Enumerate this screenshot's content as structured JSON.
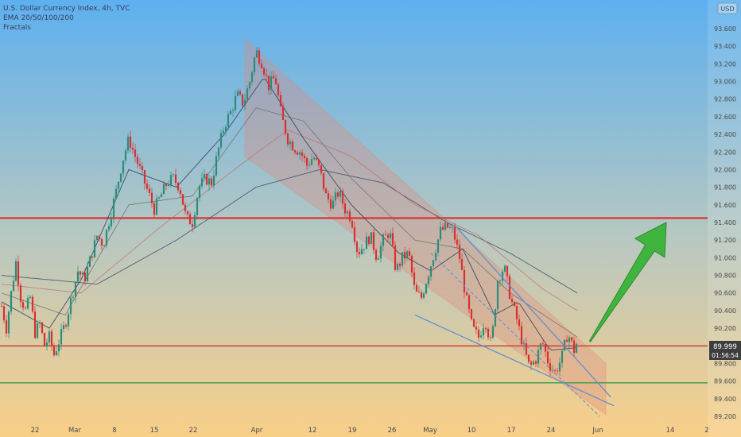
{
  "legend": {
    "line1": "U.S. Dollar Currency Index, 4h, TVC",
    "line2": "EMA 20/50/100/200",
    "line3": "Fractals"
  },
  "currency": "USD",
  "price_label": "89.999",
  "countdown": "01:56:54",
  "colors": {
    "bg_top": "#5fb0ee",
    "bg_bottom": "#f8cf8a",
    "up": "#2e8b7a",
    "down": "#d83030",
    "resistance": "#d93a3a",
    "support": "#3a9a4a",
    "channel": "#e08a7a",
    "arrow": "#3fb53f",
    "wedge": "#5b8fd6"
  },
  "chart_data": {
    "type": "candlestick",
    "title": "U.S. Dollar Currency Index, 4h, TVC",
    "ylim": [
      89.2,
      93.6
    ],
    "y_ticks": [
      "89.200",
      "89.400",
      "89.600",
      "89.800",
      "90.000",
      "90.200",
      "90.400",
      "90.600",
      "90.800",
      "91.000",
      "91.200",
      "91.400",
      "91.600",
      "91.800",
      "92.000",
      "92.200",
      "92.400",
      "92.600",
      "92.800",
      "93.000",
      "93.200",
      "93.400",
      "93.600"
    ],
    "x_ticks": [
      "22",
      "Mar",
      "8",
      "15",
      "22",
      "Apr",
      "12",
      "19",
      "26",
      "May",
      "10",
      "17",
      "24",
      "Jun",
      "14",
      "2"
    ],
    "close_path": [
      {
        "t": 0,
        "v": 90.45
      },
      {
        "t": 3,
        "v": 90.2
      },
      {
        "t": 6,
        "v": 90.6
      },
      {
        "t": 9,
        "v": 90.95
      },
      {
        "t": 12,
        "v": 90.55
      },
      {
        "t": 15,
        "v": 90.4
      },
      {
        "t": 18,
        "v": 90.55
      },
      {
        "t": 21,
        "v": 90.15
      },
      {
        "t": 24,
        "v": 90.25
      },
      {
        "t": 27,
        "v": 90.0
      },
      {
        "t": 30,
        "v": 90.1
      },
      {
        "t": 33,
        "v": 89.9
      },
      {
        "t": 36,
        "v": 90.05
      },
      {
        "t": 40,
        "v": 90.25
      },
      {
        "t": 44,
        "v": 90.55
      },
      {
        "t": 48,
        "v": 90.85
      },
      {
        "t": 52,
        "v": 90.75
      },
      {
        "t": 56,
        "v": 91.0
      },
      {
        "t": 60,
        "v": 91.25
      },
      {
        "t": 64,
        "v": 91.15
      },
      {
        "t": 68,
        "v": 91.45
      },
      {
        "t": 72,
        "v": 91.75
      },
      {
        "t": 76,
        "v": 92.1
      },
      {
        "t": 80,
        "v": 92.35
      },
      {
        "t": 84,
        "v": 92.15
      },
      {
        "t": 88,
        "v": 91.95
      },
      {
        "t": 92,
        "v": 91.75
      },
      {
        "t": 96,
        "v": 91.55
      },
      {
        "t": 100,
        "v": 91.7
      },
      {
        "t": 104,
        "v": 91.85
      },
      {
        "t": 108,
        "v": 91.9
      },
      {
        "t": 112,
        "v": 91.8
      },
      {
        "t": 116,
        "v": 91.45
      },
      {
        "t": 120,
        "v": 91.4
      },
      {
        "t": 124,
        "v": 91.8
      },
      {
        "t": 128,
        "v": 91.9
      },
      {
        "t": 132,
        "v": 91.85
      },
      {
        "t": 136,
        "v": 92.2
      },
      {
        "t": 140,
        "v": 92.5
      },
      {
        "t": 144,
        "v": 92.65
      },
      {
        "t": 148,
        "v": 92.85
      },
      {
        "t": 152,
        "v": 92.75
      },
      {
        "t": 156,
        "v": 93.0
      },
      {
        "t": 160,
        "v": 93.35
      },
      {
        "t": 164,
        "v": 93.2
      },
      {
        "t": 168,
        "v": 92.95
      },
      {
        "t": 172,
        "v": 93.05
      },
      {
        "t": 176,
        "v": 92.6
      },
      {
        "t": 180,
        "v": 92.35
      },
      {
        "t": 184,
        "v": 92.25
      },
      {
        "t": 188,
        "v": 92.2
      },
      {
        "t": 192,
        "v": 92.05
      },
      {
        "t": 196,
        "v": 92.15
      },
      {
        "t": 200,
        "v": 92.0
      },
      {
        "t": 204,
        "v": 91.7
      },
      {
        "t": 208,
        "v": 91.6
      },
      {
        "t": 212,
        "v": 91.75
      },
      {
        "t": 216,
        "v": 91.55
      },
      {
        "t": 220,
        "v": 91.45
      },
      {
        "t": 224,
        "v": 91.05
      },
      {
        "t": 228,
        "v": 91.15
      },
      {
        "t": 232,
        "v": 91.25
      },
      {
        "t": 236,
        "v": 91.0
      },
      {
        "t": 240,
        "v": 91.2
      },
      {
        "t": 244,
        "v": 91.3
      },
      {
        "t": 248,
        "v": 90.85
      },
      {
        "t": 252,
        "v": 91.0
      },
      {
        "t": 256,
        "v": 91.05
      },
      {
        "t": 260,
        "v": 90.6
      },
      {
        "t": 264,
        "v": 90.55
      },
      {
        "t": 268,
        "v": 90.8
      },
      {
        "t": 272,
        "v": 91.05
      },
      {
        "t": 276,
        "v": 91.3
      },
      {
        "t": 280,
        "v": 91.35
      },
      {
        "t": 284,
        "v": 91.3
      },
      {
        "t": 288,
        "v": 91.0
      },
      {
        "t": 292,
        "v": 90.55
      },
      {
        "t": 296,
        "v": 90.2
      },
      {
        "t": 300,
        "v": 90.1
      },
      {
        "t": 304,
        "v": 90.3
      },
      {
        "t": 308,
        "v": 90.0
      },
      {
        "t": 312,
        "v": 90.75
      },
      {
        "t": 316,
        "v": 90.9
      },
      {
        "t": 320,
        "v": 90.55
      },
      {
        "t": 324,
        "v": 90.3
      },
      {
        "t": 328,
        "v": 90.0
      },
      {
        "t": 332,
        "v": 89.75
      },
      {
        "t": 336,
        "v": 89.85
      },
      {
        "t": 340,
        "v": 90.05
      },
      {
        "t": 344,
        "v": 89.8
      },
      {
        "t": 348,
        "v": 89.7
      },
      {
        "t": 352,
        "v": 89.85
      },
      {
        "t": 356,
        "v": 90.15
      },
      {
        "t": 360,
        "v": 89.95
      },
      {
        "t": 362,
        "v": 90.05
      }
    ],
    "ema_fast": [
      {
        "t": 0,
        "v": 90.5
      },
      {
        "t": 30,
        "v": 90.2
      },
      {
        "t": 50,
        "v": 90.75
      },
      {
        "t": 80,
        "v": 92.0
      },
      {
        "t": 110,
        "v": 91.8
      },
      {
        "t": 140,
        "v": 92.4
      },
      {
        "t": 165,
        "v": 93.05
      },
      {
        "t": 190,
        "v": 92.35
      },
      {
        "t": 220,
        "v": 91.6
      },
      {
        "t": 250,
        "v": 91.05
      },
      {
        "t": 270,
        "v": 90.85
      },
      {
        "t": 290,
        "v": 91.1
      },
      {
        "t": 310,
        "v": 90.35
      },
      {
        "t": 325,
        "v": 90.5
      },
      {
        "t": 345,
        "v": 89.95
      },
      {
        "t": 362,
        "v": 89.98
      }
    ],
    "ema_mid": [
      {
        "t": 0,
        "v": 90.6
      },
      {
        "t": 40,
        "v": 90.35
      },
      {
        "t": 80,
        "v": 91.6
      },
      {
        "t": 120,
        "v": 91.7
      },
      {
        "t": 160,
        "v": 92.7
      },
      {
        "t": 190,
        "v": 92.55
      },
      {
        "t": 220,
        "v": 91.9
      },
      {
        "t": 260,
        "v": 91.2
      },
      {
        "t": 290,
        "v": 91.1
      },
      {
        "t": 320,
        "v": 90.6
      },
      {
        "t": 362,
        "v": 90.1
      }
    ],
    "ema_slow1": [
      {
        "t": 0,
        "v": 90.7
      },
      {
        "t": 50,
        "v": 90.6
      },
      {
        "t": 100,
        "v": 91.35
      },
      {
        "t": 150,
        "v": 92.05
      },
      {
        "t": 180,
        "v": 92.45
      },
      {
        "t": 220,
        "v": 92.15
      },
      {
        "t": 260,
        "v": 91.6
      },
      {
        "t": 300,
        "v": 91.25
      },
      {
        "t": 340,
        "v": 90.65
      },
      {
        "t": 362,
        "v": 90.4
      }
    ],
    "ema_slow2": [
      {
        "t": 0,
        "v": 90.8
      },
      {
        "t": 60,
        "v": 90.7
      },
      {
        "t": 110,
        "v": 91.2
      },
      {
        "t": 160,
        "v": 91.8
      },
      {
        "t": 200,
        "v": 92.0
      },
      {
        "t": 240,
        "v": 91.85
      },
      {
        "t": 280,
        "v": 91.4
      },
      {
        "t": 320,
        "v": 91.05
      },
      {
        "t": 362,
        "v": 90.6
      }
    ],
    "levels": {
      "resistance": 91.45,
      "current": 89.999,
      "support": 89.58
    },
    "channel": {
      "upper": [
        {
          "t": 153,
          "v": 93.48
        },
        {
          "t": 380,
          "v": 89.8
        }
      ],
      "lower": [
        {
          "t": 153,
          "v": 92.15
        },
        {
          "t": 380,
          "v": 89.22
        }
      ]
    },
    "projection": {
      "from": {
        "t": 370,
        "v": 90.05
      },
      "to": {
        "t": 420,
        "v": 91.4
      }
    }
  }
}
